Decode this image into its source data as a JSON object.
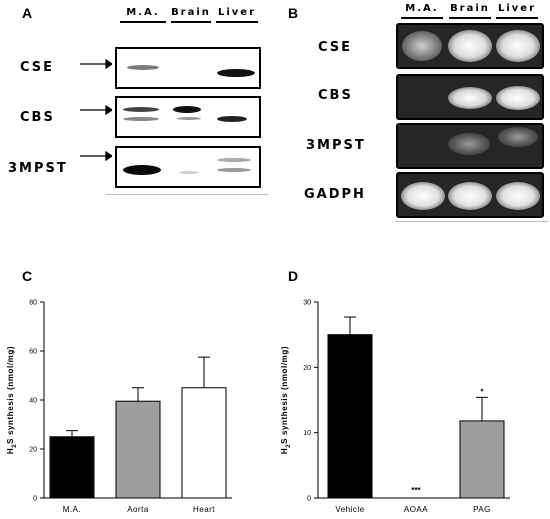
{
  "panels": {
    "A": {
      "letter": "A",
      "lanes": [
        "M.A.",
        "Brain",
        "Liver"
      ],
      "rows": [
        "CSE",
        "CBS",
        "3MPST"
      ]
    },
    "B": {
      "letter": "B",
      "lanes": [
        "M.A.",
        "Brain",
        "Liver"
      ],
      "rows": [
        "CSE",
        "CBS",
        "3MPST",
        "GADPH"
      ]
    },
    "C": {
      "letter": "C"
    },
    "D": {
      "letter": "D"
    }
  },
  "chart_data": [
    {
      "type": "bar",
      "panel": "C",
      "categories": [
        "M.A.",
        "Aorta",
        "Heart"
      ],
      "values": [
        25,
        39.5,
        45
      ],
      "errors": [
        2.5,
        5.5,
        12.5
      ],
      "bar_colors": [
        "#000000",
        "#9e9e9e",
        "#ffffff"
      ],
      "ylabel_main": "H",
      "ylabel_sub": "2",
      "ylabel_rest": "S synthesis (nmol/mg)",
      "ylim": [
        0,
        80
      ],
      "yticks": [
        "0",
        "20",
        "40",
        "60",
        "80"
      ],
      "annotations": [
        "",
        "",
        ""
      ]
    },
    {
      "type": "bar",
      "panel": "D",
      "categories": [
        "Vehicle",
        "AOAA",
        "PAG"
      ],
      "values": [
        25,
        0,
        11.8
      ],
      "errors": [
        2.7,
        0,
        3.6
      ],
      "bar_colors": [
        "#000000",
        "#000000",
        "#9e9e9e"
      ],
      "ylabel_main": "H",
      "ylabel_sub": "2",
      "ylabel_rest": "S synthesis (nmol/mg)",
      "ylim": [
        0,
        30
      ],
      "yticks": [
        "0",
        "10",
        "20",
        "30"
      ],
      "annotations": [
        "",
        "***",
        "*"
      ]
    }
  ]
}
